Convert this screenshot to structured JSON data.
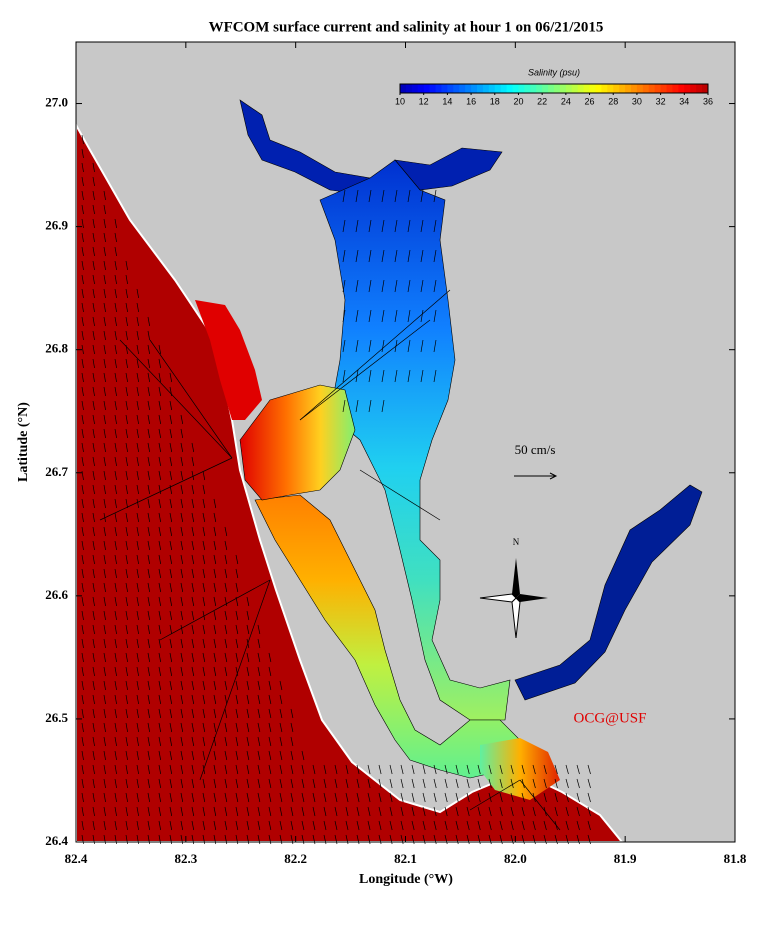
{
  "map": {
    "title": "WFCOM surface current and salinity at hour 1 on 06/21/2015",
    "x_label": "Longitude (°W)",
    "y_label": "Latitude (°N)",
    "xlim": [
      82.4,
      81.8
    ],
    "ylim": [
      26.4,
      27.05
    ],
    "xticks": [
      82.4,
      82.3,
      82.2,
      82.1,
      {
        "value": 82,
        "label": "82.0"
      },
      81.9,
      81.8
    ],
    "yticks": [
      26.4,
      26.5,
      26.6,
      26.7,
      26.8,
      26.9,
      {
        "value": 27,
        "label": "27.0"
      }
    ],
    "colorbar": {
      "title": "Salinity (psu)",
      "lim": [
        10,
        36
      ],
      "ticks": [
        10,
        12,
        14,
        16,
        18,
        20,
        22,
        24,
        26,
        28,
        30,
        32,
        34,
        36
      ]
    },
    "scale_label": "50 cm/s",
    "compass_label": "N",
    "credit": "OCG@USF"
  }
}
